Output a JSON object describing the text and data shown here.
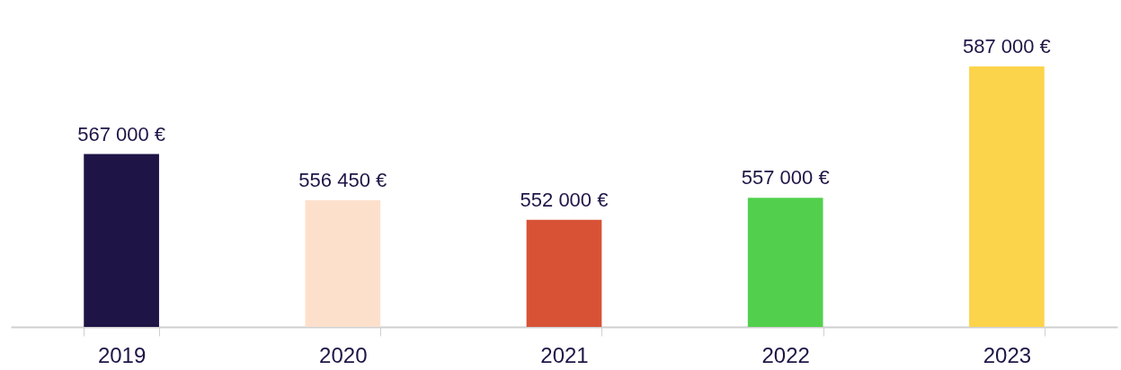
{
  "chart_data": {
    "type": "bar",
    "categories": [
      "2019",
      "2020",
      "2021",
      "2022",
      "2023"
    ],
    "values": [
      567000,
      556450,
      552000,
      557000,
      587000
    ],
    "colors": [
      "#1e1446",
      "#fde0cc",
      "#d85236",
      "#52d04d",
      "#fcd44b"
    ],
    "value_labels": [
      "567 000  €",
      "556 450  €",
      "552 000  €",
      "557 000  €",
      "587 000  €"
    ],
    "grid": false
  }
}
